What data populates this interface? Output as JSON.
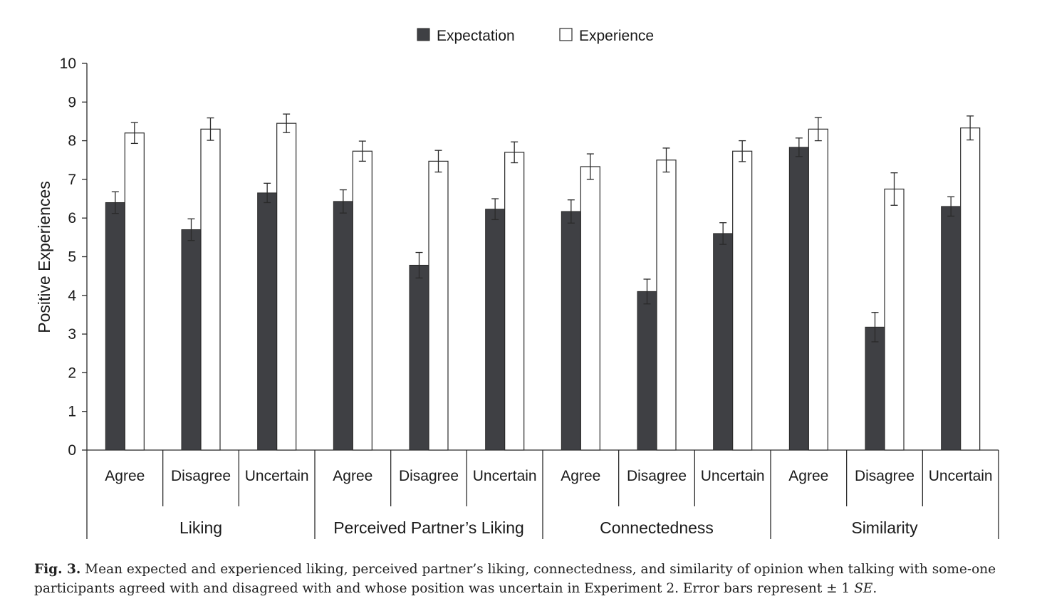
{
  "chart_data": {
    "type": "bar",
    "legend": [
      {
        "name": "Expectation",
        "color": "#3f4044"
      },
      {
        "name": "Experience",
        "color": "#ffffff"
      }
    ],
    "ylabel": "Positive Experiences",
    "ylim": [
      0,
      10
    ],
    "yticks": [
      "0",
      "1",
      "2",
      "3",
      "4",
      "5",
      "6",
      "7",
      "8",
      "9",
      "10"
    ],
    "groups": [
      {
        "label": "Liking",
        "categories": [
          "Agree",
          "Disagree",
          "Uncertain"
        ],
        "expectation": [
          6.4,
          5.7,
          6.65
        ],
        "expectation_se": [
          0.28,
          0.28,
          0.25
        ],
        "experience": [
          8.2,
          8.3,
          8.45
        ],
        "experience_se": [
          0.27,
          0.29,
          0.24
        ]
      },
      {
        "label": "Perceived Partner’s Liking",
        "categories": [
          "Agree",
          "Disagree",
          "Uncertain"
        ],
        "expectation": [
          6.43,
          4.78,
          6.23
        ],
        "expectation_se": [
          0.3,
          0.33,
          0.27
        ],
        "experience": [
          7.73,
          7.47,
          7.7
        ],
        "experience_se": [
          0.26,
          0.28,
          0.27
        ]
      },
      {
        "label": "Connectedness",
        "categories": [
          "Agree",
          "Disagree",
          "Uncertain"
        ],
        "expectation": [
          6.17,
          4.1,
          5.6
        ],
        "expectation_se": [
          0.3,
          0.32,
          0.28
        ],
        "experience": [
          7.33,
          7.5,
          7.73
        ],
        "experience_se": [
          0.33,
          0.31,
          0.27
        ]
      },
      {
        "label": "Similarity",
        "categories": [
          "Agree",
          "Disagree",
          "Uncertain"
        ],
        "expectation": [
          7.83,
          3.18,
          6.3
        ],
        "expectation_se": [
          0.24,
          0.38,
          0.25
        ],
        "experience": [
          8.3,
          6.75,
          8.33
        ],
        "experience_se": [
          0.3,
          0.42,
          0.31
        ]
      }
    ]
  },
  "caption": {
    "fig_label": "Fig. 3.",
    "text_part1": " Mean expected and experienced liking, perceived partner’s liking, connectedness, and similarity of opinion when talking with some-one participants agreed with and disagreed with and whose position was uncertain in Experiment 2. Error bars represent ± 1 ",
    "se_label": "SE",
    "text_part2": "."
  }
}
